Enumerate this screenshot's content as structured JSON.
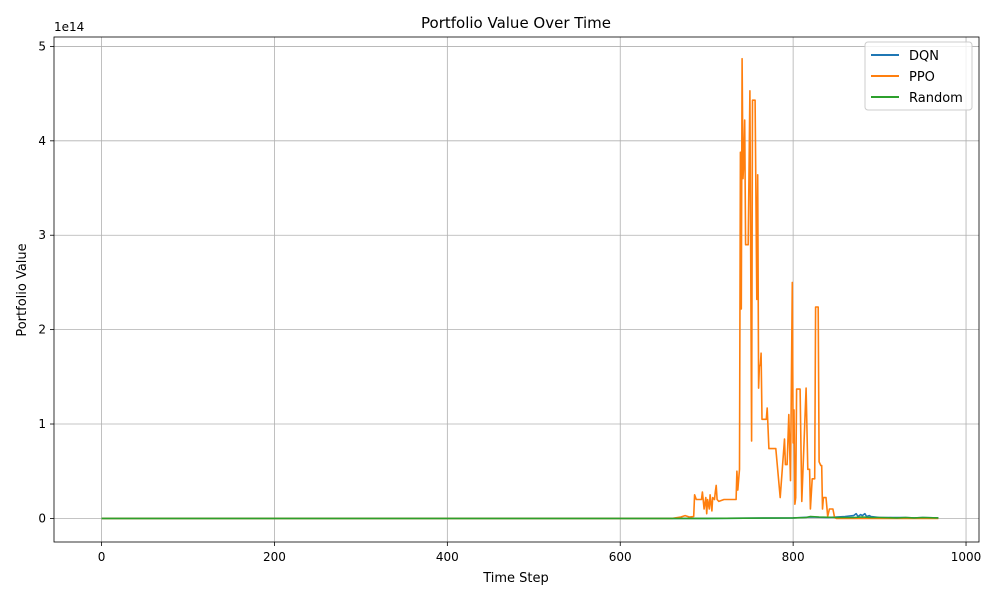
{
  "chart_data": {
    "type": "line",
    "title": "Portfolio Value Over Time",
    "xlabel": "Time Step",
    "ylabel": "Portfolio Value",
    "y_offset_text": "1e14",
    "xlim": [
      -55,
      1015
    ],
    "ylim": [
      -0.25,
      5.1
    ],
    "y_scale_note": "values in units of 1e14",
    "grid": true,
    "legend_position": "top-right",
    "x_ticks": [
      0,
      200,
      400,
      600,
      800,
      1000
    ],
    "x_tick_labels": [
      "0",
      "200",
      "400",
      "600",
      "800",
      "1000"
    ],
    "y_ticks": [
      0,
      1,
      2,
      3,
      4,
      5
    ],
    "y_tick_labels": [
      "0",
      "1",
      "2",
      "3",
      "4",
      "5"
    ],
    "series": [
      {
        "name": "DQN",
        "color": "#1f77b4",
        "x": [
          0,
          100,
          200,
          300,
          400,
          500,
          600,
          700,
          800,
          810,
          820,
          840,
          860,
          870,
          873,
          875,
          878,
          880,
          883,
          885,
          888,
          890,
          895,
          900,
          910,
          920,
          930,
          940,
          950,
          968
        ],
        "y": [
          0,
          0,
          0,
          0,
          0,
          0,
          0,
          0,
          0.005,
          0.01,
          0.015,
          0.01,
          0.02,
          0.03,
          0.05,
          0.02,
          0.04,
          0.03,
          0.05,
          0.02,
          0.03,
          0.02,
          0.015,
          0.01,
          0.01,
          0.01,
          0.01,
          0.005,
          0.01,
          0.005
        ]
      },
      {
        "name": "PPO",
        "color": "#ff7f0e",
        "x": [
          0,
          100,
          200,
          300,
          400,
          500,
          600,
          660,
          670,
          675,
          680,
          685,
          686,
          688,
          690,
          694,
          695,
          697,
          699,
          700,
          701,
          703,
          704,
          706,
          707,
          709,
          710,
          711,
          712,
          714,
          720,
          725,
          730,
          734,
          735,
          736,
          738,
          739,
          740,
          741,
          742,
          743,
          744,
          745,
          746,
          748,
          750,
          752,
          753,
          754,
          755,
          756,
          758,
          759,
          760,
          761,
          762,
          763,
          764,
          765,
          766,
          768,
          769,
          770,
          772,
          775,
          776,
          777,
          778,
          780,
          785,
          790,
          791,
          792,
          793,
          795,
          797,
          799,
          800,
          801,
          802,
          803,
          804,
          805,
          806,
          807,
          808,
          810,
          815,
          817,
          818,
          819,
          820,
          822,
          825,
          826,
          827,
          829,
          830,
          832,
          833,
          834,
          835,
          836,
          838,
          840,
          842,
          844,
          846,
          848,
          850,
          851,
          852,
          855,
          860,
          870,
          880,
          890,
          900,
          920,
          940,
          960,
          968
        ],
        "y": [
          0,
          0,
          0,
          0,
          0,
          0,
          0,
          0,
          0.015,
          0.03,
          0.015,
          0.02,
          0.25,
          0.2,
          0.2,
          0.2,
          0.28,
          0.1,
          0.22,
          0.05,
          0.2,
          0.1,
          0.25,
          0.08,
          0.22,
          0.2,
          0.28,
          0.35,
          0.2,
          0.18,
          0.2,
          0.2,
          0.2,
          0.2,
          0.5,
          0.3,
          0.52,
          3.88,
          2.22,
          4.87,
          3.6,
          3.8,
          4.22,
          2.9,
          2.9,
          2.9,
          4.53,
          0.82,
          4.43,
          4.43,
          4.43,
          4.43,
          2.32,
          3.64,
          1.38,
          1.62,
          1.62,
          1.75,
          1.05,
          1.05,
          1.05,
          1.05,
          1.05,
          1.17,
          0.74,
          0.74,
          0.74,
          0.74,
          0.74,
          0.74,
          0.22,
          0.84,
          0.57,
          0.57,
          0.57,
          1.1,
          0.4,
          2.5,
          0.8,
          1.15,
          0.15,
          0.22,
          1.37,
          1.37,
          1.37,
          1.37,
          1.37,
          0.18,
          1.38,
          0.52,
          0.52,
          0.52,
          0.1,
          0.42,
          0.42,
          2.24,
          2.24,
          2.24,
          0.6,
          0.56,
          0.56,
          0.1,
          0.22,
          0.22,
          0.22,
          0.02,
          0.1,
          0.1,
          0.1,
          0.01,
          0,
          0,
          0,
          0,
          0,
          0,
          0,
          0,
          0,
          0,
          0,
          0,
          0
        ]
      },
      {
        "name": "Random",
        "color": "#2ca02c",
        "x": [
          0,
          100,
          200,
          300,
          400,
          500,
          600,
          700,
          800,
          815,
          820,
          830,
          850,
          870,
          880,
          890,
          900,
          920,
          930,
          940,
          950,
          968
        ],
        "y": [
          0,
          0,
          0,
          0,
          0,
          0,
          0,
          0,
          0.005,
          0.01,
          0.02,
          0.015,
          0.01,
          0.01,
          0.015,
          0.01,
          0.01,
          0.005,
          0.01,
          0.005,
          0.01,
          0.005
        ]
      }
    ]
  }
}
